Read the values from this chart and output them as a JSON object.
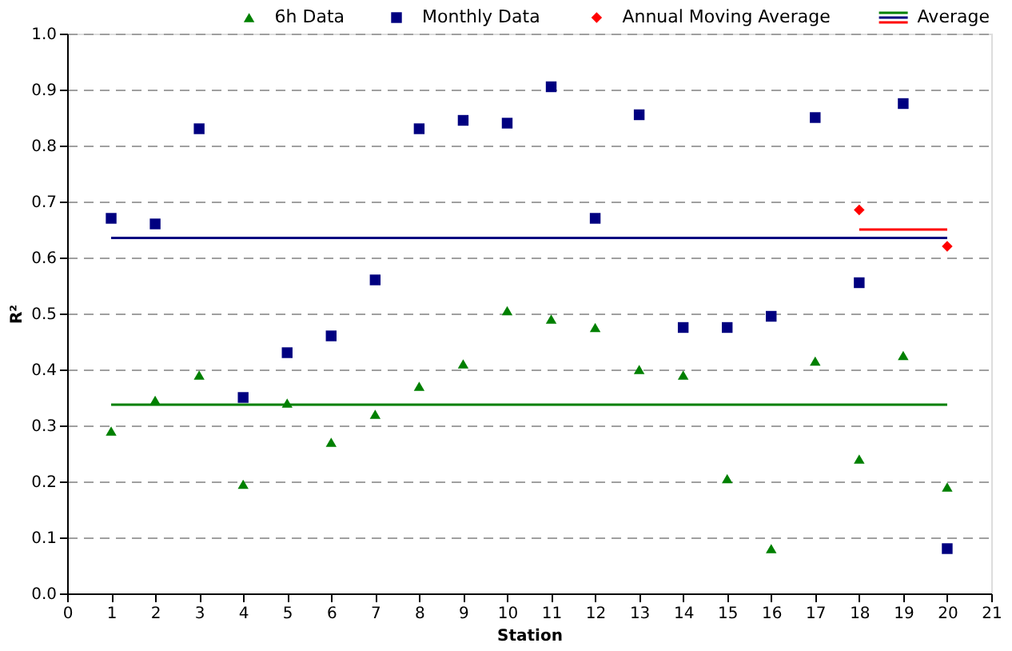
{
  "chart_data": {
    "type": "scatter",
    "xlabel": "Station",
    "ylabel": "R²",
    "x": [
      1,
      2,
      3,
      4,
      5,
      6,
      7,
      8,
      9,
      10,
      11,
      12,
      13,
      14,
      15,
      16,
      17,
      18,
      19,
      20
    ],
    "series": [
      {
        "name": "6h Data",
        "color": "#008000",
        "marker": "triangle",
        "values": [
          0.29,
          0.345,
          0.39,
          0.195,
          0.34,
          0.27,
          0.32,
          0.37,
          0.41,
          0.505,
          0.49,
          0.475,
          0.4,
          0.39,
          0.205,
          0.08,
          0.415,
          0.24,
          0.425,
          0.19
        ]
      },
      {
        "name": "Monthly Data",
        "color": "#000080",
        "marker": "square",
        "values": [
          0.67,
          0.66,
          0.83,
          0.35,
          0.43,
          0.46,
          0.56,
          0.83,
          0.845,
          0.84,
          0.905,
          0.67,
          0.855,
          0.475,
          0.475,
          0.495,
          0.85,
          0.555,
          0.875,
          0.08
        ]
      },
      {
        "name": "Annual Moving Average",
        "color": "#ff0000",
        "marker": "diamond",
        "x": [
          18,
          20
        ],
        "values": [
          0.685,
          0.62
        ]
      },
      {
        "name": "Average",
        "type": "line",
        "color": "#008000",
        "marker": "none",
        "x": [
          1,
          20
        ],
        "values": [
          0.337,
          0.337
        ]
      },
      {
        "type": "line",
        "color": "#000080",
        "marker": "none",
        "x": [
          1,
          20
        ],
        "values": [
          0.635,
          0.635
        ]
      },
      {
        "type": "line",
        "color": "#ff0000",
        "marker": "none",
        "x": [
          18,
          20
        ],
        "values": [
          0.65,
          0.65
        ]
      }
    ],
    "xlim": [
      0,
      21
    ],
    "xticks": [
      0,
      1,
      2,
      3,
      4,
      5,
      6,
      7,
      8,
      9,
      10,
      11,
      12,
      13,
      14,
      15,
      16,
      17,
      18,
      19,
      20,
      21
    ],
    "ylim": [
      0,
      1
    ],
    "yticks": [
      {
        "value": 0,
        "label": "0.0"
      },
      {
        "value": 0.1,
        "label": "0.1"
      },
      {
        "value": 0.2,
        "label": "0.2"
      },
      {
        "value": 0.3,
        "label": "0.3"
      },
      {
        "value": 0.4,
        "label": "0.4"
      },
      {
        "value": 0.5,
        "label": "0.5"
      },
      {
        "value": 0.6,
        "label": "0.6"
      },
      {
        "value": 0.7,
        "label": "0.7"
      },
      {
        "value": 0.8,
        "label": "0.8"
      },
      {
        "value": 0.9,
        "label": "0.9"
      },
      {
        "value": 1,
        "label": "1.0"
      }
    ],
    "grid": "y",
    "legend": "top right"
  }
}
